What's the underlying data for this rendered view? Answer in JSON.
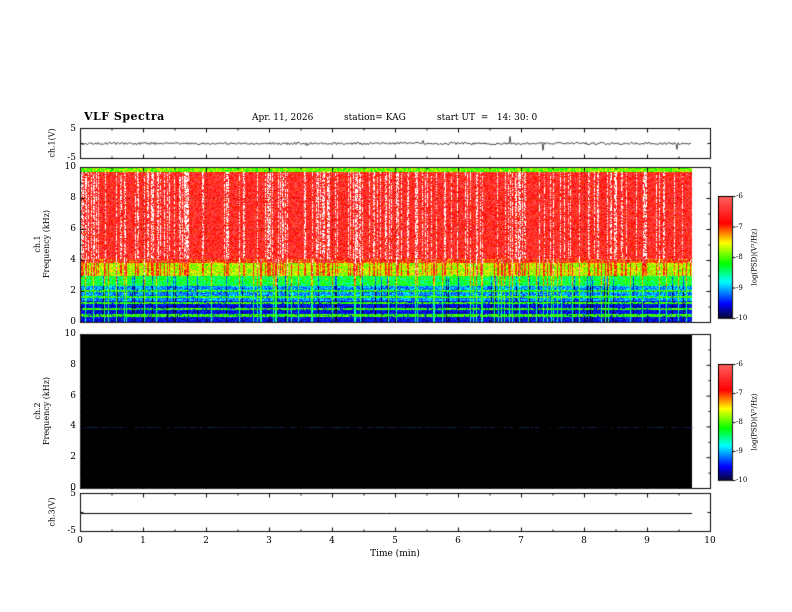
{
  "header": {
    "title": "VLF Spectra",
    "date": "Apr. 11, 2026",
    "station": "station= KAG",
    "start_ut": "start UT  =   14: 30: 0"
  },
  "x_axis": {
    "label": "Time (min)",
    "ticks": [
      "0",
      "1",
      "2",
      "3",
      "4",
      "5",
      "6",
      "7",
      "8",
      "9",
      "10"
    ],
    "range": [
      0,
      10
    ]
  },
  "panels": {
    "ch1_wave": {
      "name": "ch.1(V)",
      "top_tick": "5",
      "bottom_tick": "-5",
      "range_v": [
        -5,
        5
      ]
    },
    "ch1_spec": {
      "channel": "ch.1",
      "ylabel": "Frequency (kHz)",
      "yticks": [
        "0",
        "2",
        "4",
        "6",
        "8",
        "10"
      ],
      "range_khz": [
        0,
        10
      ]
    },
    "ch2_spec": {
      "channel": "ch.2",
      "ylabel": "Frequency (kHz)",
      "yticks": [
        "0",
        "2",
        "4",
        "6",
        "8",
        "10"
      ],
      "range_khz": [
        0,
        10
      ]
    },
    "ch3_wave": {
      "name": "ch.3(V)",
      "top_tick": "5",
      "bottom_tick": "-5",
      "range_v": [
        -5,
        5
      ]
    }
  },
  "colorbars": [
    {
      "label": "log(PSD)(V²/Hz)",
      "ticks": [
        "-6",
        "-7",
        "-8",
        "-9",
        "-10"
      ],
      "range": [
        -10,
        -6
      ]
    },
    {
      "label": "log(PSD)(V²/Hz)",
      "ticks": [
        "-6",
        "-7",
        "-8",
        "-9",
        "-10"
      ],
      "range": [
        -10,
        -6
      ]
    }
  ],
  "colormap": {
    "type": "jet-like",
    "stops": [
      {
        "t": 0.0,
        "c": "#080830"
      },
      {
        "t": 0.12,
        "c": "#0000ff"
      },
      {
        "t": 0.3,
        "c": "#00ffff"
      },
      {
        "t": 0.45,
        "c": "#00ff00"
      },
      {
        "t": 0.62,
        "c": "#ffff00"
      },
      {
        "t": 0.78,
        "c": "#ff0000"
      },
      {
        "t": 1.0,
        "c": "#ff6060"
      }
    ],
    "over": "#ffffff"
  },
  "chart_data": [
    {
      "type": "line",
      "panel": "ch.1 waveform",
      "ylabel": "ch.1(V)",
      "ylim": [
        -5,
        5
      ],
      "xlim": [
        0,
        10
      ],
      "noise_amplitude_v": 0.4,
      "spike_fraction": 0.012,
      "spike_amplitude_v": 2.3,
      "description": "dense low-amplitude noise centred on 0 V, extending from 0 to ~9.8 min"
    },
    {
      "type": "heatmap",
      "panel": "ch.1 spectrogram",
      "xlabel": "Time (min)",
      "ylabel": "Frequency (kHz)",
      "xlim": [
        0,
        10
      ],
      "ylim": [
        0,
        10
      ],
      "zlabel": "log(PSD)(V²/Hz)",
      "zlim": [
        -10,
        -6
      ],
      "data_end_min": 9.8,
      "bands": [
        {
          "f_min": 9.8,
          "f_max": 10.01,
          "level": -7.9,
          "spread": 0.8,
          "note": "dark-green speckle strip at top edge"
        },
        {
          "f_min": 4.1,
          "f_max": 9.8,
          "level": -6.55,
          "spread": 1.1,
          "note": "intense red field with dense white vertical bursts"
        },
        {
          "f_min": 3.85,
          "f_max": 4.1,
          "level": -7.0,
          "spread": 0.9,
          "note": "orange-red line near 4 kHz"
        },
        {
          "f_min": 3.0,
          "f_max": 3.85,
          "level": -7.7,
          "spread": 0.9,
          "note": "yellow-green band"
        },
        {
          "f_min": 2.4,
          "f_max": 3.0,
          "level": -8.3,
          "spread": 0.8,
          "note": "green-cyan band"
        },
        {
          "f_min": 1.4,
          "f_max": 2.4,
          "level": -9.1,
          "spread": 0.8,
          "note": "blue band with green/cyan vertical streaks"
        },
        {
          "f_min": 0.0,
          "f_max": 1.4,
          "level": -9.55,
          "spread": 0.5,
          "note": "dark navy band with green horizontal lines"
        }
      ],
      "horizontal_lines_khz": [
        0.45,
        0.85,
        1.25,
        1.65,
        2.05
      ],
      "horizontal_line_level": -8.05,
      "white_burst_column_fraction": 0.3,
      "green_column_fraction": 0.1,
      "dark_column_fraction": 0.07,
      "gridlines_khz": [
        2,
        4,
        6,
        8
      ]
    },
    {
      "type": "heatmap",
      "panel": "ch.2 spectrogram",
      "xlabel": "Time (min)",
      "ylabel": "Frequency (kHz)",
      "xlim": [
        0,
        10
      ],
      "ylim": [
        0,
        10
      ],
      "zlabel": "log(PSD)(V²/Hz)",
      "zlim": [
        -10,
        -6
      ],
      "data_end_min": 9.8,
      "background_level": "at/below -10 (renders black)",
      "faint_line_khz": 4.0,
      "description": "entire panel at noise floor (black) except a very faint blue line near 4 kHz"
    },
    {
      "type": "line",
      "panel": "ch.3 waveform",
      "ylabel": "ch.3(V)",
      "ylim": [
        -5,
        5
      ],
      "xlim": [
        0,
        10
      ],
      "value_v": 0,
      "description": "perfectly flat line at 0 V from 0 to ~9.8 min"
    }
  ]
}
